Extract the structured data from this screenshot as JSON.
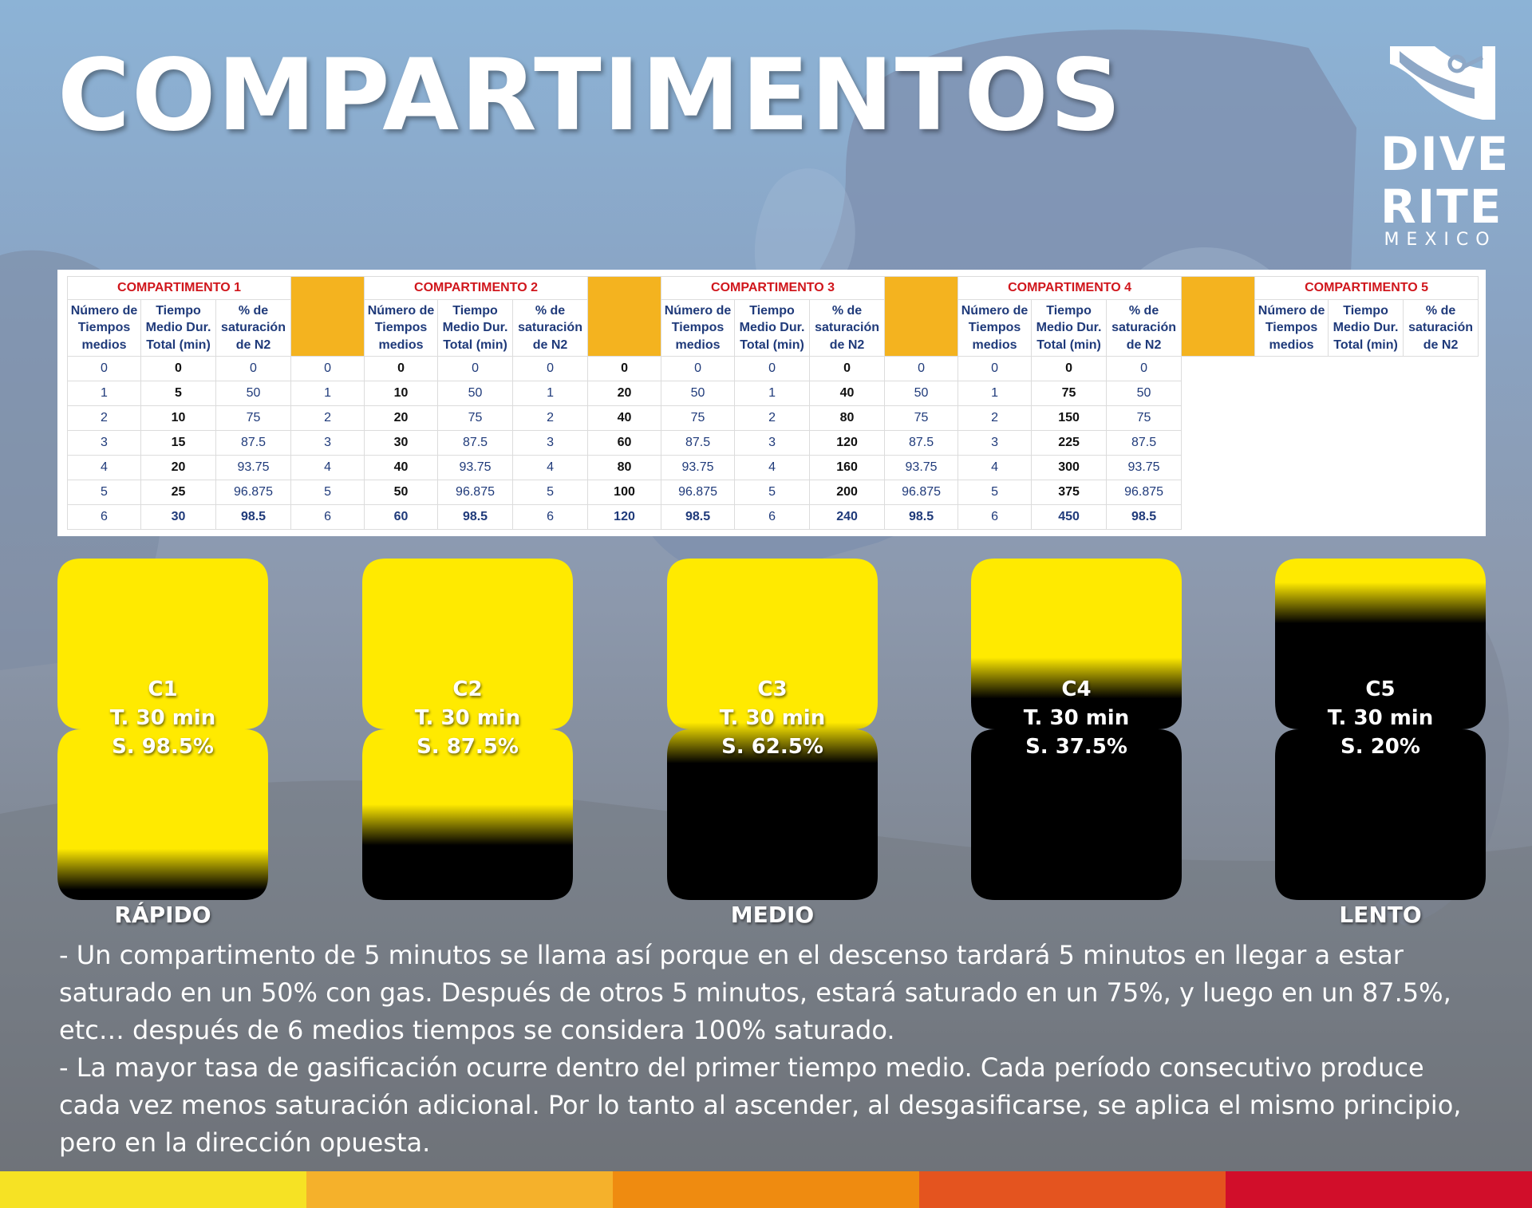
{
  "title": "COMPARTIMENTOS",
  "logo": {
    "line1": "DIVE",
    "line2": "RITE",
    "line3": "MEXICO"
  },
  "table": {
    "column_headers": [
      "Número de Tiempos medios",
      "Tiempo Medio Dur. Total (min)",
      "% de saturación de N2"
    ],
    "compartments": [
      {
        "name": "COMPARTIMENTO 1",
        "rows": [
          [
            "0",
            "0",
            "0"
          ],
          [
            "1",
            "5",
            "50"
          ],
          [
            "2",
            "10",
            "75"
          ],
          [
            "3",
            "15",
            "87.5"
          ],
          [
            "4",
            "20",
            "93.75"
          ],
          [
            "5",
            "25",
            "96.875"
          ],
          [
            "6",
            "30",
            "98.5"
          ]
        ]
      },
      {
        "name": "COMPARTIMENTO 2",
        "rows": [
          [
            "0",
            "0",
            "0"
          ],
          [
            "1",
            "10",
            "50"
          ],
          [
            "2",
            "20",
            "75"
          ],
          [
            "3",
            "30",
            "87.5"
          ],
          [
            "4",
            "40",
            "93.75"
          ],
          [
            "5",
            "50",
            "96.875"
          ],
          [
            "6",
            "60",
            "98.5"
          ]
        ]
      },
      {
        "name": "COMPARTIMENTO 3",
        "rows": [
          [
            "0",
            "0",
            "0"
          ],
          [
            "1",
            "20",
            "50"
          ],
          [
            "2",
            "40",
            "75"
          ],
          [
            "3",
            "60",
            "87.5"
          ],
          [
            "4",
            "80",
            "93.75"
          ],
          [
            "5",
            "100",
            "96.875"
          ],
          [
            "6",
            "120",
            "98.5"
          ]
        ]
      },
      {
        "name": "COMPARTIMENTO 4",
        "rows": [
          [
            "0",
            "0",
            "0"
          ],
          [
            "1",
            "40",
            "50"
          ],
          [
            "2",
            "80",
            "75"
          ],
          [
            "3",
            "120",
            "87.5"
          ],
          [
            "4",
            "160",
            "93.75"
          ],
          [
            "5",
            "200",
            "96.875"
          ],
          [
            "6",
            "240",
            "98.5"
          ]
        ]
      },
      {
        "name": "COMPARTIMENTO 5",
        "rows": [
          [
            "0",
            "0",
            "0"
          ],
          [
            "1",
            "75",
            "50"
          ],
          [
            "2",
            "150",
            "75"
          ],
          [
            "3",
            "225",
            "87.5"
          ],
          [
            "4",
            "300",
            "93.75"
          ],
          [
            "5",
            "375",
            "96.875"
          ],
          [
            "6",
            "450",
            "98.5"
          ]
        ]
      }
    ]
  },
  "boxes": [
    {
      "name": "C1",
      "time": "T. 30 min",
      "sat": "S. 98.5%",
      "fill": 0.95
    },
    {
      "name": "C2",
      "time": "T. 30 min",
      "sat": "S. 87.5%",
      "fill": 0.82
    },
    {
      "name": "C3",
      "time": "T. 30 min",
      "sat": "S. 62.5%",
      "fill": 0.58
    },
    {
      "name": "C4",
      "time": "T. 30 min",
      "sat": "S. 37.5%",
      "fill": 0.39
    },
    {
      "name": "C5",
      "time": "T. 30 min",
      "sat": "S. 20%",
      "fill": 0.17
    }
  ],
  "labels": {
    "fast": "RÁPIDO",
    "medium": "MEDIO",
    "slow": "LENTO"
  },
  "notes": {
    "p1": "- Un compartimento de 5 minutos se llama así porque en el descenso tardará 5 minutos en llegar a estar saturado en un 50% con gas. Después de otros 5 minutos, estará saturado en un 75%, y luego en un 87.5%, etc… después de 6 medios tiempos se considera 100% saturado.",
    "p2": "- La mayor tasa de gasificación ocurre dentro del primer tiempo medio. Cada período consecutivo produce cada vez menos saturación adicional. Por lo tanto al ascender, al desgasificarse, se aplica el mismo principio, pero en la dirección opuesta."
  },
  "colors": {
    "fill_yellow": "#ffea00",
    "empty_black": "#000000",
    "bar": [
      "#f6e224",
      "#f5b12b",
      "#ef8b10",
      "#e4541f",
      "#d10e2a"
    ]
  }
}
